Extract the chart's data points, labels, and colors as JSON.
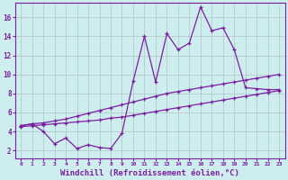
{
  "background_color": "#cdedef",
  "line_color": "#7b1fa2",
  "grid_color": "#b0c4c4",
  "xlabel": "Windchill (Refroidissement éolien,°C)",
  "xlabel_fontsize": 6.5,
  "yticks": [
    2,
    4,
    6,
    8,
    10,
    12,
    14,
    16
  ],
  "xticks": [
    0,
    1,
    2,
    3,
    4,
    5,
    6,
    7,
    8,
    9,
    10,
    11,
    12,
    13,
    14,
    15,
    16,
    17,
    18,
    19,
    20,
    21,
    22,
    23
  ],
  "xlim": [
    -0.5,
    23.5
  ],
  "ylim": [
    1.2,
    17.5
  ],
  "x_all": [
    0,
    1,
    2,
    3,
    4,
    5,
    6,
    7,
    8,
    9,
    10,
    11,
    12,
    13,
    14,
    15,
    16,
    17,
    18,
    19,
    20,
    21,
    22,
    23
  ],
  "line_upper_y": [
    4.6,
    4.8,
    4.9,
    5.1,
    5.3,
    5.6,
    5.9,
    6.2,
    6.5,
    6.8,
    7.1,
    7.4,
    7.7,
    8.0,
    8.2,
    8.4,
    8.6,
    8.8,
    9.0,
    9.2,
    9.4,
    9.6,
    9.8,
    10.0
  ],
  "line_lower_y": [
    4.5,
    4.6,
    4.7,
    4.8,
    4.9,
    5.0,
    5.1,
    5.2,
    5.4,
    5.5,
    5.7,
    5.9,
    6.1,
    6.3,
    6.5,
    6.7,
    6.9,
    7.1,
    7.3,
    7.5,
    7.7,
    7.9,
    8.1,
    8.3
  ],
  "line_jagged_x": [
    0,
    1,
    2,
    3,
    4,
    5,
    6,
    7,
    8,
    9,
    10,
    11,
    12,
    13,
    14,
    15,
    16,
    17,
    18,
    19,
    20,
    21,
    22,
    23
  ],
  "line_jagged_y": [
    4.6,
    4.8,
    4.0,
    2.7,
    3.3,
    2.2,
    2.6,
    2.3,
    2.2,
    3.8,
    9.3,
    14.0,
    9.2,
    14.3,
    12.6,
    13.3,
    17.1,
    14.6,
    14.9,
    12.6,
    8.6,
    8.5,
    8.4,
    8.4
  ]
}
